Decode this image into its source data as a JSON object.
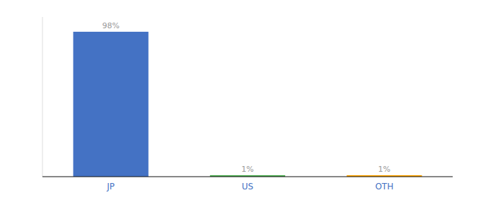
{
  "chart_data": {
    "type": "bar",
    "categories": [
      "JP",
      "US",
      "OTH"
    ],
    "values": [
      98,
      1,
      1
    ],
    "value_labels": [
      "98%",
      "1%",
      "1%"
    ],
    "colors": [
      "#4472c4",
      "#4caf50",
      "#ffa500"
    ],
    "ylim": [
      0,
      108
    ],
    "data_labels": true,
    "tick_labels": "x",
    "grid": false
  }
}
